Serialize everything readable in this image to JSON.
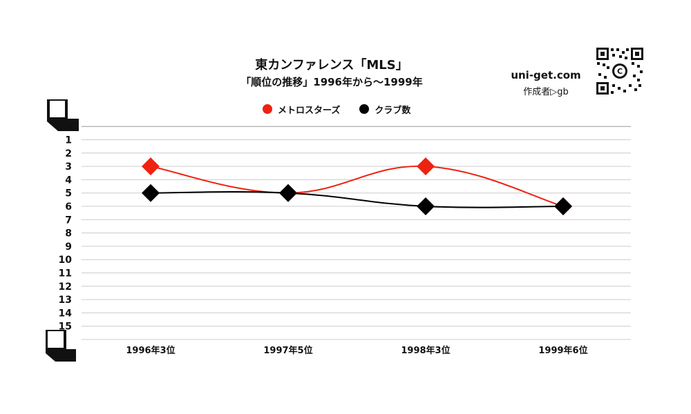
{
  "header": {
    "title": "東カンファレンス「MLS」",
    "subtitle": "「順位の推移」1996年から～1999年",
    "site": "uni-get.com",
    "author": "作成者▷gb"
  },
  "icons": {
    "qr": "qr-code-icon",
    "corner_top": "corner-bracket-icon",
    "corner_bottom": "corner-bracket-icon"
  },
  "colors": {
    "metrostars": "#ee2211",
    "clubs": "#000000",
    "grid": "#cccccc"
  },
  "chart_data": {
    "type": "line",
    "categories": [
      "1996年3位",
      "1997年5位",
      "1998年3位",
      "1999年6位"
    ],
    "series": [
      {
        "name": "メトロスターズ",
        "values": [
          3,
          5,
          3,
          6
        ],
        "color": "#ee2211"
      },
      {
        "name": "クラブ数",
        "values": [
          5,
          5,
          6,
          6
        ],
        "color": "#000000"
      }
    ],
    "y_ticks": [
      "1",
      "2",
      "3",
      "4",
      "5",
      "6",
      "7",
      "8",
      "9",
      "10",
      "11",
      "12",
      "13",
      "14",
      "15"
    ],
    "ylim": [
      0,
      16
    ],
    "y_inverted": true,
    "grid": true,
    "legend": "top-center"
  }
}
